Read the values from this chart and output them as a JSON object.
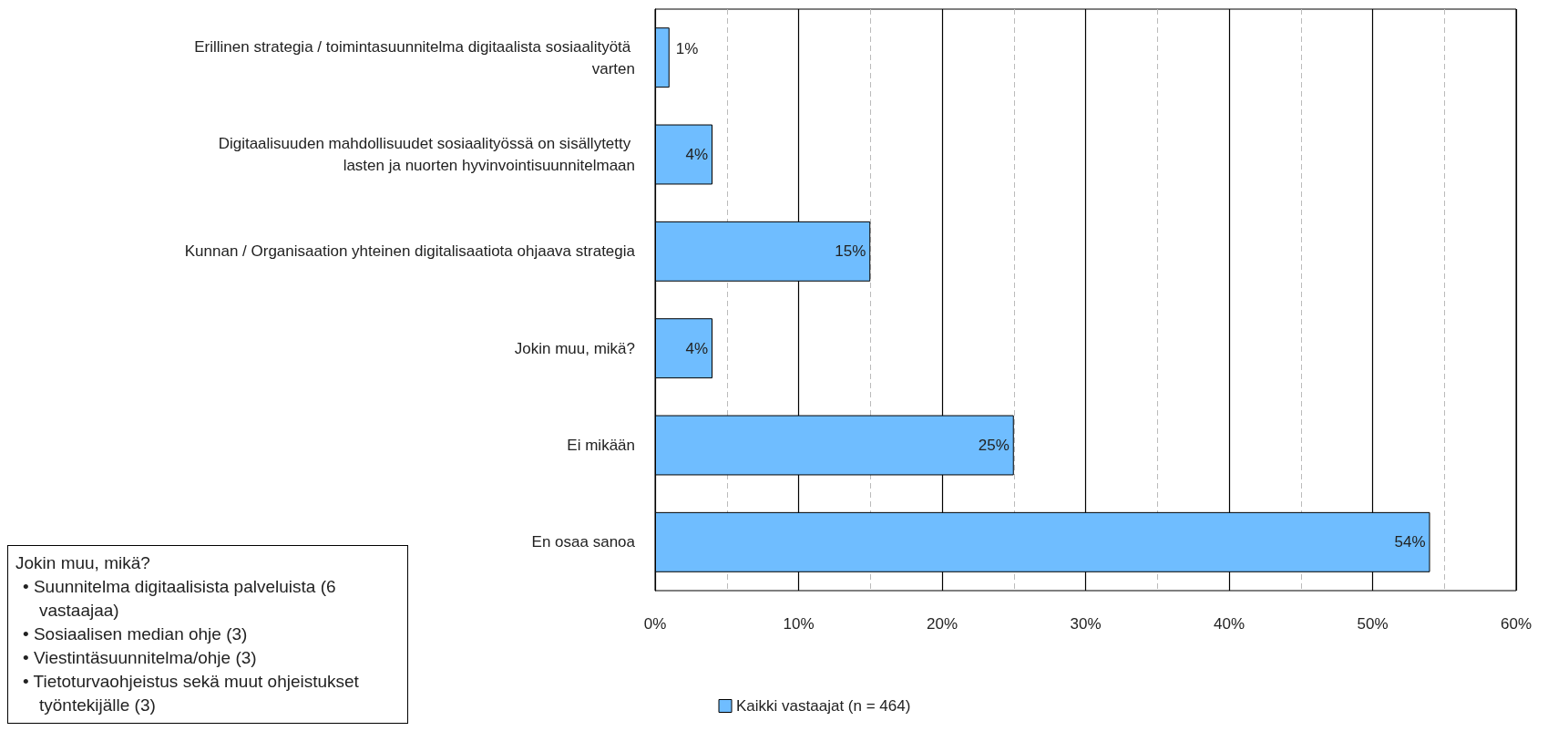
{
  "chart_data": {
    "type": "bar",
    "orientation": "horizontal",
    "categories": [
      "Erillinen strategia / toimintasuunnitelma digitaalista sosiaalityötä varten",
      "Digitaalisuuden mahdollisuudet sosiaalityössä on sisällytetty lasten ja nuorten hyvinvointisuunnitelmaan",
      "Kunnan / Organisaation yhteinen digitalisaatiota ohjaava strategia",
      "Jokin muu, mikä?",
      "Ei mikään",
      "En osaa sanoa"
    ],
    "series": [
      {
        "name": "Kaikki vastaajat (n = 464)",
        "color": "#6fbdff",
        "values": [
          1,
          4,
          15,
          4,
          25,
          54
        ],
        "value_labels": [
          "1%",
          "4%",
          "15%",
          "4%",
          "25%",
          "54%"
        ]
      }
    ],
    "xlim": [
      0,
      60
    ],
    "xticks": [
      {
        "value": 0,
        "label": "0%"
      },
      {
        "value": 5,
        "label": null
      },
      {
        "value": 10,
        "label": "10%"
      },
      {
        "value": 15,
        "label": null
      },
      {
        "value": 20,
        "label": "20%"
      },
      {
        "value": 25,
        "label": null
      },
      {
        "value": 30,
        "label": "30%"
      },
      {
        "value": 35,
        "label": null
      },
      {
        "value": 40,
        "label": "40%"
      },
      {
        "value": 45,
        "label": null
      },
      {
        "value": 50,
        "label": "50%"
      },
      {
        "value": 55,
        "label": null
      },
      {
        "value": 60,
        "label": "60%"
      }
    ],
    "grid": "x",
    "legend": "bottom",
    "annotations": [
      "Jokin muu, mikä?",
      "• Suunnitelma digitaalisista palveluista (6 vastaajaa)",
      "• Sosiaalisen median ohje (3)",
      "• Viestintäsuunnitelma/ohje (3)",
      "• Tietoturvaohjeistus sekä muut ohjeistukset työntekijälle (3)"
    ]
  }
}
